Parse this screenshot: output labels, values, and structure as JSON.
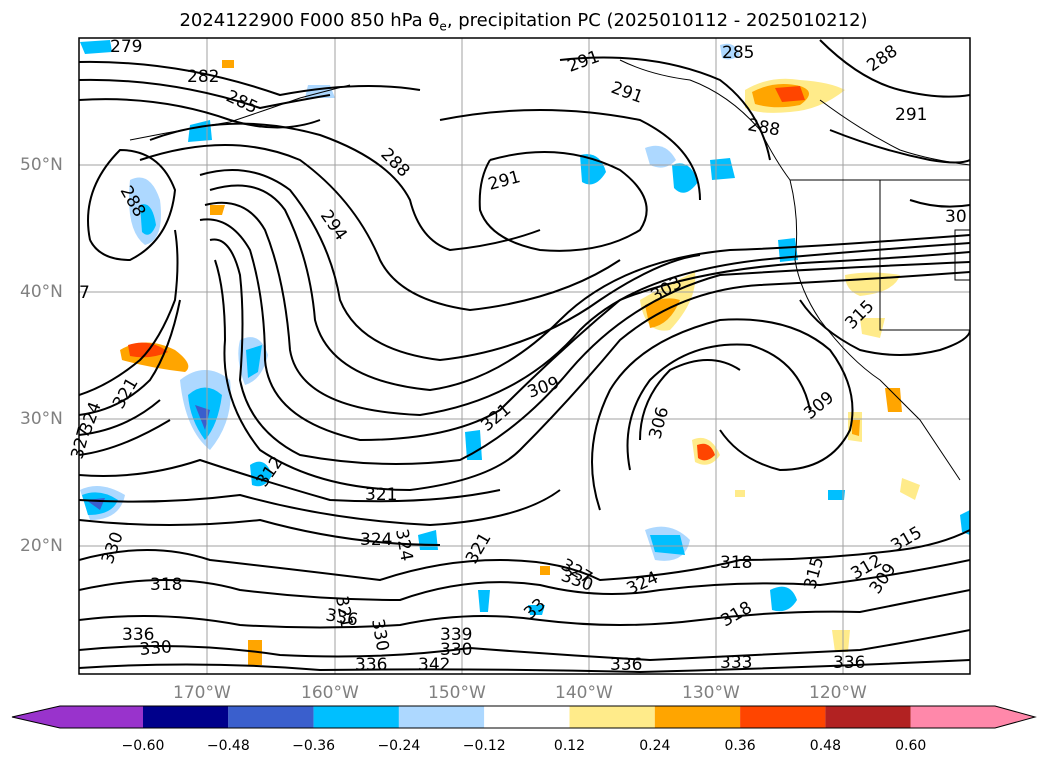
{
  "title_main": "2024122900 F000 850 hPa θ",
  "title_sub": "e",
  "title_tail": ", precipitation PC (2025010112 - 2025010212)",
  "lat_labels": [
    "50°N",
    "40°N",
    "30°N",
    "20°N"
  ],
  "lat_edge_text": "7",
  "lon_labels": [
    "170°W",
    "160°W",
    "150°W",
    "140°W",
    "130°W",
    "120°W"
  ],
  "contour_labels": [
    "279",
    "282",
    "285",
    "288",
    "291",
    "291",
    "291",
    "285",
    "288",
    "288",
    "291",
    "294",
    "288",
    "303",
    "315",
    "309",
    "306",
    "309",
    "321",
    "321",
    "327",
    "324",
    "318",
    "312",
    "321",
    "324",
    "321",
    "330",
    "330",
    "327",
    "324",
    "318",
    "336",
    "336",
    "330",
    "321",
    "336",
    "330",
    "339",
    "342",
    "333",
    "336",
    "336",
    "33",
    "324",
    "330",
    "315",
    "312",
    "309",
    "315",
    "30",
    "318"
  ],
  "colorbar": {
    "ticks": [
      "−0.60",
      "−0.48",
      "−0.36",
      "−0.24",
      "−0.12",
      "0.12",
      "0.24",
      "0.36",
      "0.48",
      "0.60"
    ],
    "colors": [
      "#9933cc",
      "#00008b",
      "#3a5fcd",
      "#00bfff",
      "#add8ff",
      "#ffffff",
      "#ffeb8a",
      "#ffa500",
      "#ff4500",
      "#b22222",
      "#ff88aa"
    ]
  }
}
